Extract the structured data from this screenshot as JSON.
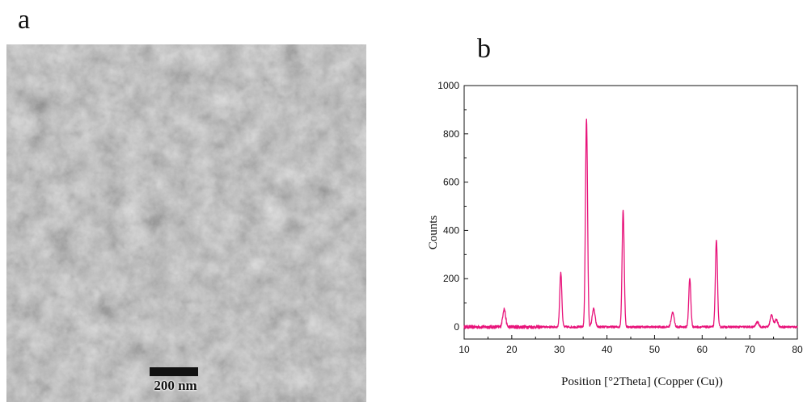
{
  "figure": {
    "panel_a_label": "a",
    "panel_b_label": "b",
    "scale_bar_label": "200 nm"
  },
  "colors": {
    "line": "#e8137a",
    "axis": "#111111"
  },
  "chart_data": {
    "type": "line",
    "xlabel": "Position [°2Theta] (Copper (Cu))",
    "ylabel": "Counts",
    "xlim": [
      10,
      80
    ],
    "ylim": [
      -50,
      1000
    ],
    "xticks": [
      10,
      20,
      30,
      40,
      50,
      60,
      70,
      80
    ],
    "yticks": [
      0,
      200,
      400,
      600,
      800,
      1000
    ],
    "grid": false,
    "series": [
      {
        "peaks": [
          {
            "x": 18.4,
            "y": 75
          },
          {
            "x": 30.3,
            "y": 225
          },
          {
            "x": 35.7,
            "y": 860
          },
          {
            "x": 37.2,
            "y": 75
          },
          {
            "x": 43.4,
            "y": 485
          },
          {
            "x": 53.8,
            "y": 60
          },
          {
            "x": 57.4,
            "y": 200
          },
          {
            "x": 63.0,
            "y": 360
          },
          {
            "x": 71.6,
            "y": 20
          },
          {
            "x": 74.6,
            "y": 50
          },
          {
            "x": 75.6,
            "y": 30
          }
        ]
      }
    ]
  }
}
